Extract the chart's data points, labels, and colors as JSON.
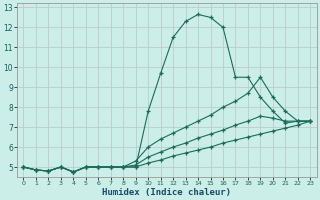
{
  "xlabel": "Humidex (Indice chaleur)",
  "bg_color": "#cceee8",
  "grid_color": "#bbcccc",
  "line_color": "#1a6b5a",
  "xlim": [
    -0.5,
    23.5
  ],
  "ylim": [
    4.5,
    13.2
  ],
  "yticks": [
    5,
    6,
    7,
    8,
    9,
    10,
    11,
    12,
    13
  ],
  "xticks": [
    0,
    1,
    2,
    3,
    4,
    5,
    6,
    7,
    8,
    9,
    10,
    11,
    12,
    13,
    14,
    15,
    16,
    17,
    18,
    19,
    20,
    21,
    22,
    23
  ],
  "curve1_x": [
    0,
    1,
    2,
    3,
    4,
    5,
    6,
    7,
    8,
    9,
    10,
    11,
    12,
    13,
    14,
    15,
    16,
    17,
    18,
    19,
    20,
    21,
    22,
    23
  ],
  "curve1_y": [
    5.0,
    4.85,
    4.8,
    5.0,
    4.75,
    5.0,
    5.0,
    5.0,
    5.0,
    5.0,
    7.8,
    9.7,
    11.5,
    12.3,
    12.65,
    12.5,
    12.0,
    9.5,
    9.5,
    8.5,
    7.8,
    7.2,
    7.3,
    7.3
  ],
  "curve2_x": [
    0,
    1,
    2,
    3,
    4,
    5,
    6,
    7,
    8,
    9,
    10,
    11,
    12,
    13,
    14,
    15,
    16,
    17,
    18,
    19,
    20,
    21,
    22,
    23
  ],
  "curve2_y": [
    5.0,
    4.85,
    4.8,
    5.0,
    4.75,
    5.0,
    5.0,
    5.0,
    5.0,
    5.3,
    6.0,
    6.4,
    6.7,
    7.0,
    7.3,
    7.6,
    8.0,
    8.3,
    8.7,
    9.5,
    8.5,
    7.8,
    7.3,
    7.3
  ],
  "curve3_x": [
    0,
    1,
    2,
    3,
    4,
    5,
    6,
    7,
    8,
    9,
    10,
    11,
    12,
    13,
    14,
    15,
    16,
    17,
    18,
    19,
    20,
    21,
    22,
    23
  ],
  "curve3_y": [
    5.0,
    4.85,
    4.8,
    5.0,
    4.75,
    5.0,
    5.0,
    5.0,
    5.0,
    5.1,
    5.5,
    5.75,
    6.0,
    6.2,
    6.45,
    6.65,
    6.85,
    7.1,
    7.3,
    7.55,
    7.45,
    7.3,
    7.3,
    7.3
  ],
  "curve4_x": [
    0,
    1,
    2,
    3,
    4,
    5,
    6,
    7,
    8,
    9,
    10,
    11,
    12,
    13,
    14,
    15,
    16,
    17,
    18,
    19,
    20,
    21,
    22,
    23
  ],
  "curve4_y": [
    5.0,
    4.85,
    4.8,
    5.0,
    4.75,
    5.0,
    5.0,
    5.0,
    5.0,
    5.0,
    5.2,
    5.35,
    5.55,
    5.7,
    5.85,
    6.0,
    6.2,
    6.35,
    6.5,
    6.65,
    6.8,
    6.95,
    7.1,
    7.3
  ]
}
